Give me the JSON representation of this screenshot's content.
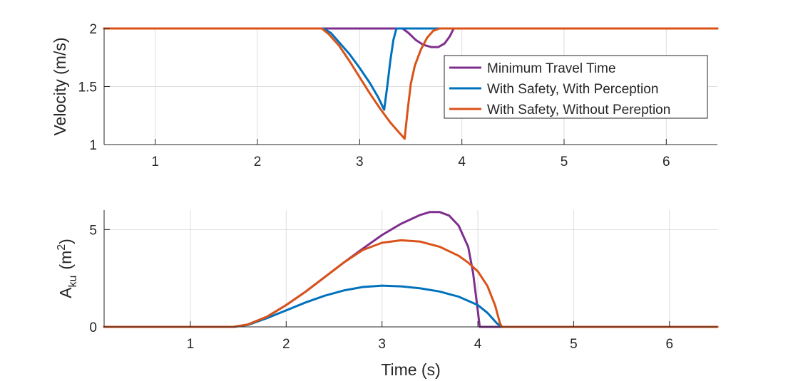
{
  "chart_data": [
    {
      "type": "line",
      "title": "",
      "xlabel": "",
      "ylabel": "Velocity (m/s)",
      "xlim": [
        0.5,
        6.5
      ],
      "ylim": [
        1,
        2
      ],
      "xticks": [
        1,
        2,
        3,
        4,
        5,
        6
      ],
      "yticks": [
        1,
        1.5,
        2
      ],
      "grid": true,
      "legend_position": "right",
      "series": [
        {
          "name": "Minimum Travel Time",
          "color": "#7E2F8E",
          "points": [
            [
              0.5,
              2
            ],
            [
              3.42,
              2
            ],
            [
              3.48,
              1.96
            ],
            [
              3.55,
              1.9
            ],
            [
              3.62,
              1.86
            ],
            [
              3.7,
              1.84
            ],
            [
              3.77,
              1.84
            ],
            [
              3.83,
              1.87
            ],
            [
              3.88,
              1.93
            ],
            [
              3.92,
              2
            ],
            [
              6.5,
              2
            ]
          ]
        },
        {
          "name": "With Safety, With Perception",
          "color": "#0072BD",
          "points": [
            [
              0.5,
              2
            ],
            [
              2.65,
              2
            ],
            [
              2.72,
              1.96
            ],
            [
              2.8,
              1.88
            ],
            [
              2.9,
              1.78
            ],
            [
              3.0,
              1.66
            ],
            [
              3.1,
              1.53
            ],
            [
              3.18,
              1.41
            ],
            [
              3.24,
              1.3
            ],
            [
              3.27,
              1.5
            ],
            [
              3.3,
              1.72
            ],
            [
              3.33,
              1.9
            ],
            [
              3.36,
              2
            ],
            [
              3.6,
              2
            ],
            [
              6.5,
              2
            ]
          ]
        },
        {
          "name": "With Safety, Without Pereption",
          "color": "#D95319",
          "points": [
            [
              0.5,
              2
            ],
            [
              2.63,
              2
            ],
            [
              2.7,
              1.95
            ],
            [
              2.8,
              1.85
            ],
            [
              2.9,
              1.72
            ],
            [
              3.0,
              1.58
            ],
            [
              3.1,
              1.44
            ],
            [
              3.2,
              1.31
            ],
            [
              3.3,
              1.19
            ],
            [
              3.38,
              1.11
            ],
            [
              3.44,
              1.05
            ],
            [
              3.47,
              1.3
            ],
            [
              3.5,
              1.52
            ],
            [
              3.54,
              1.68
            ],
            [
              3.6,
              1.82
            ],
            [
              3.66,
              1.92
            ],
            [
              3.72,
              1.98
            ],
            [
              3.78,
              2
            ],
            [
              6.5,
              2
            ]
          ]
        }
      ]
    },
    {
      "type": "line",
      "title": "",
      "xlabel": "Time (s)",
      "ylabel": "A_ku (m^2)",
      "ylabel_parts": {
        "base": "A",
        "sub": "ku",
        "units_open": "(m",
        "sup": "2",
        "units_close": ")"
      },
      "xlim": [
        0.1,
        6.5
      ],
      "ylim": [
        0,
        6
      ],
      "xticks": [
        1,
        2,
        3,
        4,
        5,
        6
      ],
      "yticks": [
        0,
        5
      ],
      "grid": true,
      "series": [
        {
          "name": "Minimum Travel Time",
          "color": "#7E2F8E",
          "points": [
            [
              0.1,
              0
            ],
            [
              1.45,
              0
            ],
            [
              1.6,
              0.12
            ],
            [
              1.8,
              0.52
            ],
            [
              2.0,
              1.12
            ],
            [
              2.2,
              1.8
            ],
            [
              2.4,
              2.55
            ],
            [
              2.6,
              3.3
            ],
            [
              2.8,
              4.02
            ],
            [
              3.0,
              4.72
            ],
            [
              3.2,
              5.3
            ],
            [
              3.4,
              5.75
            ],
            [
              3.5,
              5.9
            ],
            [
              3.6,
              5.9
            ],
            [
              3.7,
              5.72
            ],
            [
              3.8,
              5.2
            ],
            [
              3.9,
              4.1
            ],
            [
              3.95,
              2.8
            ],
            [
              4.0,
              0.8
            ],
            [
              4.02,
              0
            ],
            [
              6.5,
              0
            ]
          ]
        },
        {
          "name": "With Safety, With Perception",
          "color": "#0072BD",
          "points": [
            [
              0.1,
              0
            ],
            [
              1.45,
              0
            ],
            [
              1.6,
              0.1
            ],
            [
              1.8,
              0.45
            ],
            [
              2.0,
              0.85
            ],
            [
              2.2,
              1.25
            ],
            [
              2.4,
              1.6
            ],
            [
              2.6,
              1.87
            ],
            [
              2.8,
              2.05
            ],
            [
              3.0,
              2.12
            ],
            [
              3.2,
              2.08
            ],
            [
              3.4,
              1.98
            ],
            [
              3.6,
              1.82
            ],
            [
              3.8,
              1.55
            ],
            [
              4.0,
              1.12
            ],
            [
              4.1,
              0.72
            ],
            [
              4.2,
              0.18
            ],
            [
              4.25,
              0
            ],
            [
              6.5,
              0
            ]
          ]
        },
        {
          "name": "With Safety, Without Pereption",
          "color": "#D95319",
          "points": [
            [
              0.1,
              0
            ],
            [
              1.45,
              0
            ],
            [
              1.6,
              0.12
            ],
            [
              1.8,
              0.52
            ],
            [
              2.0,
              1.12
            ],
            [
              2.2,
              1.8
            ],
            [
              2.4,
              2.55
            ],
            [
              2.6,
              3.3
            ],
            [
              2.8,
              3.95
            ],
            [
              3.0,
              4.32
            ],
            [
              3.2,
              4.45
            ],
            [
              3.4,
              4.38
            ],
            [
              3.6,
              4.12
            ],
            [
              3.8,
              3.65
            ],
            [
              3.9,
              3.3
            ],
            [
              4.0,
              2.85
            ],
            [
              4.1,
              2.1
            ],
            [
              4.18,
              1.1
            ],
            [
              4.23,
              0.2
            ],
            [
              4.25,
              0
            ],
            [
              6.5,
              0
            ]
          ]
        }
      ]
    }
  ]
}
